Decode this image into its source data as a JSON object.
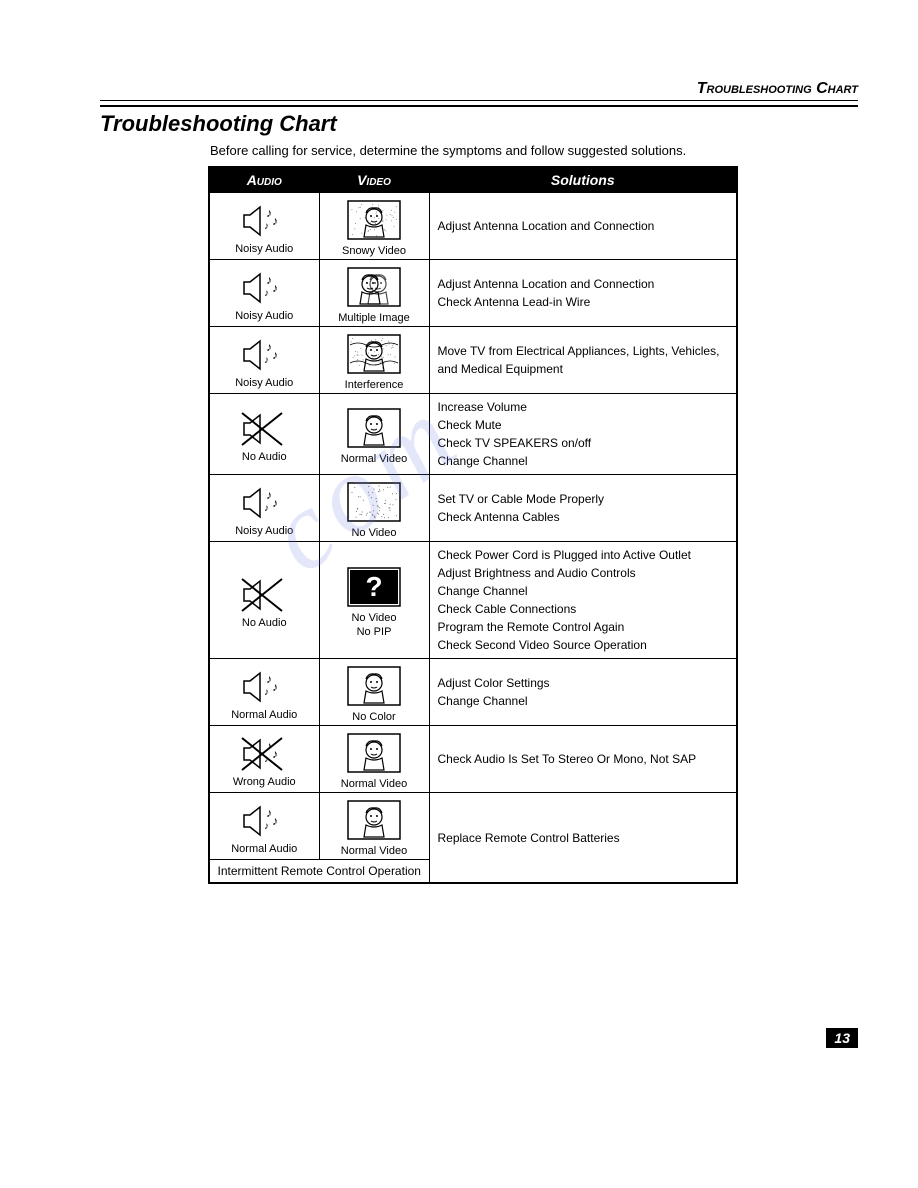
{
  "header": {
    "section_title": "Troubleshooting Chart"
  },
  "page": {
    "title": "Troubleshooting Chart",
    "intro": "Before calling for service, determine the symptoms and follow suggested solutions.",
    "number": "13"
  },
  "table": {
    "headers": {
      "audio": "Audio",
      "video": "Video",
      "solutions": "Solutions"
    },
    "rows": [
      {
        "audio": {
          "type": "noisy",
          "label": "Noisy Audio"
        },
        "video": {
          "type": "snowy",
          "label": "Snowy Video"
        },
        "solutions": [
          "Adjust Antenna Location and Connection"
        ]
      },
      {
        "audio": {
          "type": "noisy",
          "label": "Noisy Audio"
        },
        "video": {
          "type": "multiple",
          "label": "Multiple Image"
        },
        "solutions": [
          "Adjust Antenna Location and Connection",
          "Check Antenna Lead-in Wire"
        ]
      },
      {
        "audio": {
          "type": "noisy",
          "label": "Noisy Audio"
        },
        "video": {
          "type": "interference",
          "label": "Interference"
        },
        "solutions": [
          "Move TV from Electrical Appliances, Lights, Vehicles, and Medical Equipment"
        ]
      },
      {
        "audio": {
          "type": "none",
          "label": "No Audio"
        },
        "video": {
          "type": "normal",
          "label": "Normal Video"
        },
        "solutions": [
          "Increase Volume",
          "Check Mute",
          "Check TV SPEAKERS on/off",
          "Change Channel"
        ]
      },
      {
        "audio": {
          "type": "noisy",
          "label": "Noisy Audio"
        },
        "video": {
          "type": "novideo",
          "label": "No Video"
        },
        "solutions": [
          "Set TV or Cable Mode Properly",
          "Check Antenna Cables"
        ]
      },
      {
        "audio": {
          "type": "none",
          "label": "No Audio"
        },
        "video": {
          "type": "black",
          "label": "No Video",
          "sublabel": "No PIP"
        },
        "solutions": [
          "Check Power Cord is Plugged into Active Outlet",
          "Adjust Brightness and Audio Controls",
          "Change Channel",
          "Check Cable Connections",
          "Program the Remote Control Again",
          "Check Second Video Source Operation"
        ]
      },
      {
        "audio": {
          "type": "normal",
          "label": "Normal Audio"
        },
        "video": {
          "type": "nocolor",
          "label": "No Color"
        },
        "solutions": [
          "Adjust Color Settings",
          "Change Channel"
        ]
      },
      {
        "audio": {
          "type": "wrong",
          "label": "Wrong Audio"
        },
        "video": {
          "type": "normal",
          "label": "Normal Video"
        },
        "solutions": [
          "Check Audio Is Set To Stereo Or Mono, Not SAP"
        ]
      },
      {
        "audio": {
          "type": "normal",
          "label": "Normal Audio"
        },
        "video": {
          "type": "normal",
          "label": "Normal Video"
        },
        "solutions": [
          "Replace Remote Control Batteries"
        ],
        "footnote": "Intermittent Remote Control Operation"
      }
    ]
  },
  "watermark": "com",
  "icons": {
    "speaker_size": 44,
    "tv_size": 56,
    "colors": {
      "stroke": "#000000",
      "fill_white": "#ffffff",
      "fill_black": "#000000",
      "fill_dots": "#888888"
    }
  }
}
